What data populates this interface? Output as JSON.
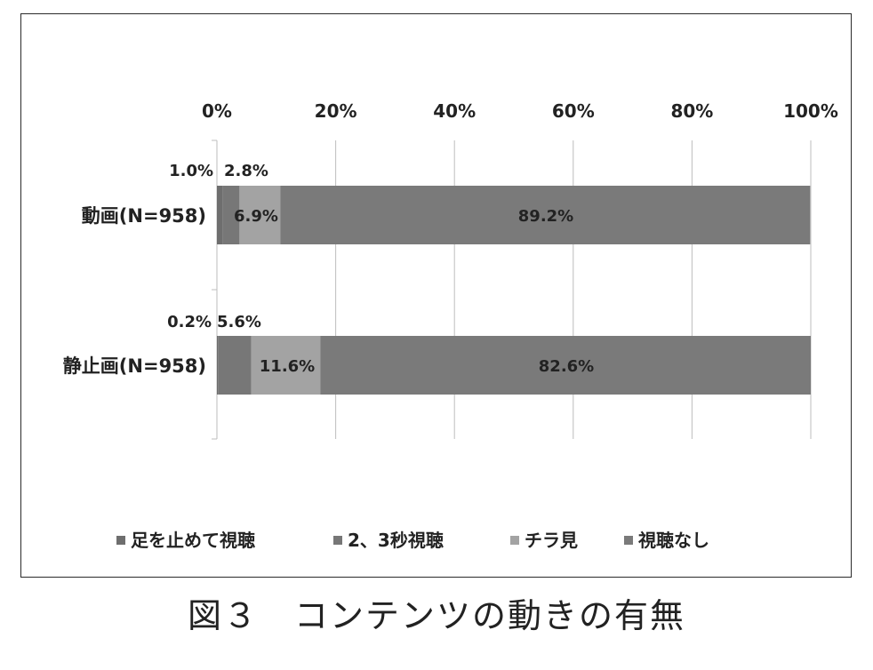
{
  "chart_data": {
    "type": "bar",
    "orientation": "horizontal",
    "stacked": "percent",
    "categories": [
      "動画(N=958)",
      "静止画(N=958)"
    ],
    "series": [
      {
        "name": "足を止めて視聴",
        "values": [
          1.0,
          0.2
        ],
        "labels": [
          "1.0%",
          "0.2%"
        ],
        "color": "#6e6e6e"
      },
      {
        "name": "2、3秒視聴",
        "values": [
          2.8,
          5.6
        ],
        "labels": [
          "2.8%",
          "5.6%"
        ],
        "color": "#777777"
      },
      {
        "name": "チラ見",
        "values": [
          6.9,
          11.6
        ],
        "labels": [
          "6.9%",
          "11.6%"
        ],
        "color": "#a3a3a3"
      },
      {
        "name": "視聴なし",
        "values": [
          89.2,
          82.6
        ],
        "labels": [
          "89.2%",
          "82.6%"
        ],
        "color": "#7a7a7a"
      }
    ],
    "x_ticks": [
      "0%",
      "20%",
      "40%",
      "60%",
      "80%",
      "100%"
    ],
    "xlim": [
      0,
      100
    ],
    "x_axis_position": "top",
    "grid": true,
    "legend": "bottom"
  },
  "caption": "図３　コンテンツの動きの有無"
}
